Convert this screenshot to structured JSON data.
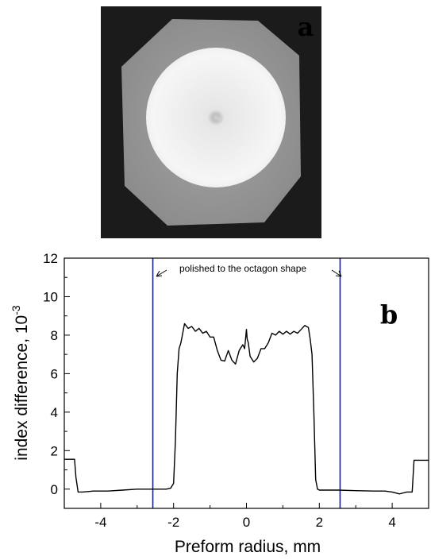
{
  "panel_a": {
    "label": "a"
  },
  "chart_data": {
    "type": "line",
    "panel_label": "b",
    "title": "",
    "xlabel": "Preform radius, mm",
    "ylabel": "index difference, 10",
    "ylabel_exponent": "-3",
    "xlim": [
      -5.0,
      5.0
    ],
    "ylim": [
      -1.0,
      12.0
    ],
    "x_ticks": [
      "-4",
      "-2",
      "0",
      "2",
      "4"
    ],
    "y_ticks": [
      "0",
      "2",
      "4",
      "6",
      "8",
      "10",
      "12"
    ],
    "grid": false,
    "annotation": "polished to the octagon shape",
    "vertical_lines": [
      -2.57,
      2.57
    ],
    "line_color": "#000000",
    "marker_line_color": "#1a237e",
    "series": [
      {
        "x": [
          -5.0,
          -4.72,
          -4.68,
          -4.62,
          -4.5,
          -4.2,
          -3.8,
          -3.4,
          -3.0,
          -2.6,
          -2.2,
          -2.08,
          -2.0,
          -1.95,
          -1.9,
          -1.85,
          -1.8,
          -1.7,
          -1.6,
          -1.5,
          -1.4,
          -1.3,
          -1.2,
          -1.1,
          -1.0,
          -0.9,
          -0.8,
          -0.7,
          -0.6,
          -0.5,
          -0.4,
          -0.3,
          -0.2,
          -0.1,
          -0.05,
          0.0,
          0.02,
          0.05,
          0.1,
          0.2,
          0.3,
          0.4,
          0.5,
          0.6,
          0.7,
          0.8,
          0.9,
          1.0,
          1.1,
          1.2,
          1.3,
          1.4,
          1.5,
          1.6,
          1.7,
          1.75,
          1.8,
          1.85,
          1.9,
          1.95,
          2.0,
          2.1,
          2.5,
          3.0,
          3.5,
          3.8,
          4.0,
          4.2,
          4.4,
          4.55,
          4.6,
          4.65,
          5.0
        ],
        "y": [
          1.55,
          1.55,
          0.6,
          -0.15,
          -0.15,
          -0.1,
          -0.1,
          -0.05,
          0.0,
          0.0,
          0.0,
          0.05,
          0.3,
          2.5,
          6.0,
          7.3,
          7.6,
          8.6,
          8.35,
          8.45,
          8.2,
          8.35,
          8.1,
          8.2,
          7.9,
          7.9,
          7.2,
          6.7,
          6.65,
          7.2,
          6.7,
          6.5,
          7.2,
          7.5,
          7.3,
          8.3,
          7.8,
          7.6,
          6.9,
          6.6,
          6.8,
          7.3,
          7.3,
          7.6,
          8.1,
          8.0,
          8.2,
          8.05,
          8.2,
          8.05,
          8.2,
          8.1,
          8.3,
          8.5,
          8.4,
          7.8,
          7.0,
          4.0,
          0.5,
          0.0,
          -0.05,
          -0.05,
          -0.05,
          -0.08,
          -0.1,
          -0.1,
          -0.15,
          -0.25,
          -0.15,
          -0.15,
          1.5,
          1.5,
          1.5
        ]
      }
    ]
  }
}
